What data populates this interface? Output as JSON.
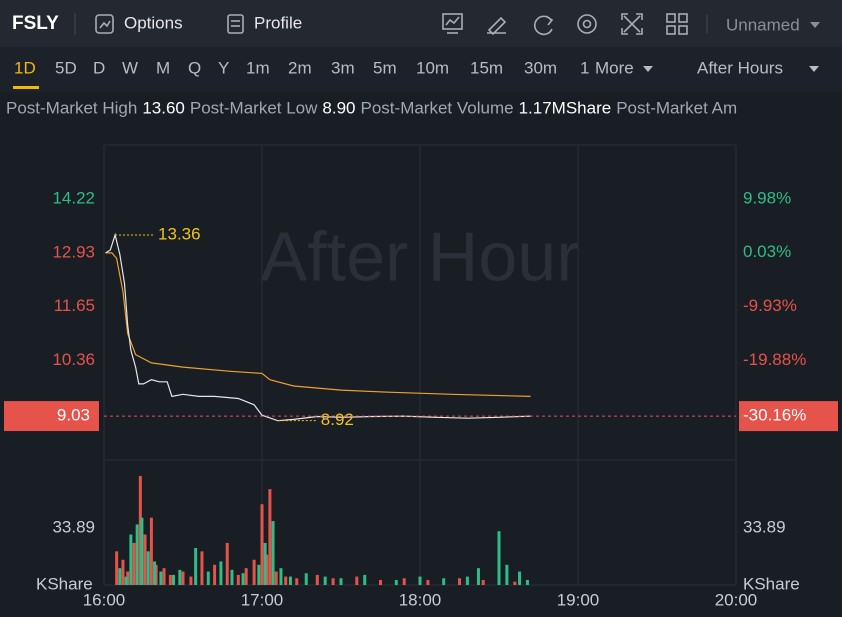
{
  "header": {
    "symbol": "FSLY",
    "tabs": [
      "Options",
      "Profile"
    ],
    "workspace": "Unnamed"
  },
  "periods": {
    "items": [
      "1D",
      "5D",
      "D",
      "W",
      "M",
      "Q",
      "Y",
      "1m",
      "2m",
      "3m",
      "5m",
      "10m",
      "15m",
      "30m",
      "1",
      "More"
    ],
    "selected": 0,
    "session": "After Hours"
  },
  "stats": [
    {
      "label": "Post-Market High",
      "value": "13.60"
    },
    {
      "label": "Post-Market Low",
      "value": "8.90"
    },
    {
      "label": "Post-Market Volume",
      "value": "1.17MShare"
    },
    {
      "label": "Post-Market Am"
    }
  ],
  "chart_data": {
    "type": "line",
    "watermark": "After Hour",
    "xlim": [
      16,
      20
    ],
    "xticks": [
      {
        "value": 16,
        "label": "16:00"
      },
      {
        "value": 17,
        "label": "17:00"
      },
      {
        "value": 18,
        "label": "18:00"
      },
      {
        "value": 19,
        "label": "19:00"
      },
      {
        "value": 20,
        "label": "20:00"
      }
    ],
    "ylim": [
      7.98,
      15.51
    ],
    "yticks": [
      14.22,
      12.93,
      11.65,
      10.36
    ],
    "y2lim": [
      -38.27,
      19.93
    ],
    "y2ticks": [
      {
        "value": 9.98,
        "label": "9.98%"
      },
      {
        "value": 0.03,
        "label": "0.03%"
      },
      {
        "value": -9.93,
        "label": "-9.93%"
      },
      {
        "value": -19.88,
        "label": "-19.88%"
      }
    ],
    "up_color": "#2ebd85",
    "down_color": "#e5534b",
    "series": [
      {
        "color": "#e6e6e6",
        "x": [
          16.01,
          16.04,
          16.07,
          16.1,
          16.13,
          16.15,
          16.17,
          16.2,
          16.22,
          16.25,
          16.3,
          16.35,
          16.4,
          16.43,
          16.5,
          16.6,
          16.7,
          16.85,
          16.95,
          17.0,
          17.1,
          17.2,
          17.35,
          17.5,
          17.7,
          17.9,
          18.1,
          18.3,
          18.5,
          18.7
        ],
        "values": [
          12.93,
          13.0,
          13.36,
          12.9,
          12.2,
          11.2,
          10.6,
          10.2,
          9.8,
          9.8,
          9.9,
          9.85,
          9.85,
          9.5,
          9.55,
          9.5,
          9.5,
          9.45,
          9.3,
          9.05,
          8.92,
          8.95,
          9.02,
          9.0,
          9.02,
          9.03,
          9.0,
          8.98,
          9.0,
          9.03
        ]
      },
      {
        "color": "#f0a030",
        "x": [
          16.01,
          16.05,
          16.08,
          16.12,
          16.15,
          16.2,
          16.3,
          16.5,
          16.8,
          17.0,
          17.05,
          17.2,
          17.5,
          17.8,
          18.2,
          18.7
        ],
        "values": [
          12.93,
          12.93,
          12.8,
          12.0,
          11.0,
          10.5,
          10.3,
          10.2,
          10.1,
          10.05,
          9.9,
          9.75,
          9.65,
          9.6,
          9.55,
          9.5
        ]
      }
    ],
    "last_price": 9.03,
    "last_change": {
      "value": -30.16,
      "label": "-30.16%"
    },
    "high": 13.36,
    "low": 8.92,
    "volume": {
      "type": "bar",
      "ylim": [
        0,
        74.3
      ],
      "yticks": [
        33.89
      ],
      "unit": "KShare",
      "series": [
        {
          "color": "#e5534b",
          "x": [
            16.08,
            16.12,
            16.15,
            16.19,
            16.23,
            16.26,
            16.3,
            16.33,
            16.38,
            16.42,
            16.5,
            16.55,
            16.62,
            16.7,
            16.78,
            16.85,
            16.9,
            16.95,
            17.0,
            17.03,
            17.05,
            17.09,
            17.15,
            17.22,
            17.35,
            17.45,
            17.6,
            17.75,
            17.9,
            18.05,
            18.25,
            18.4,
            18.6
          ],
          "values": [
            20,
            15,
            8,
            25,
            64.8,
            30,
            40,
            12,
            10,
            6,
            8,
            5,
            20,
            12,
            25,
            6,
            10,
            15,
            48,
            18,
            57,
            8,
            5,
            4,
            6,
            4,
            5,
            3,
            4,
            3,
            4,
            3,
            2
          ]
        },
        {
          "color": "#2ebd85",
          "x": [
            16.1,
            16.14,
            16.17,
            16.21,
            16.24,
            16.28,
            16.32,
            16.36,
            16.44,
            16.48,
            16.58,
            16.66,
            16.74,
            16.81,
            16.88,
            16.98,
            17.02,
            17.07,
            17.12,
            17.18,
            17.28,
            17.4,
            17.5,
            17.65,
            17.85,
            18.0,
            18.15,
            18.3,
            18.37,
            18.5,
            18.55,
            18.63,
            18.68
          ],
          "values": [
            10,
            5,
            30,
            36,
            40,
            20,
            14,
            8,
            6,
            9,
            22,
            8,
            14,
            9,
            7,
            12,
            25,
            38,
            10,
            5,
            7,
            5,
            4,
            6,
            3,
            5,
            4,
            5,
            10,
            32,
            12,
            8,
            3
          ]
        }
      ]
    }
  }
}
